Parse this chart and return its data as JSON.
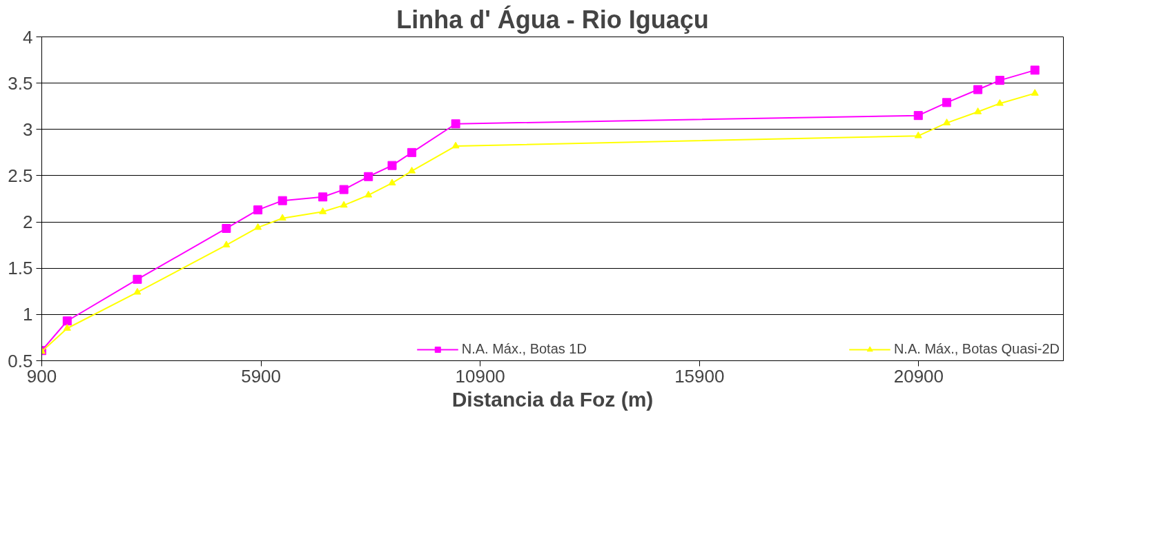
{
  "chart_data": {
    "type": "line",
    "title": "Linha d' Água - Rio Iguaçu",
    "xlabel": "Distancia da Foz (m)",
    "x": [
      900,
      1480,
      3080,
      5110,
      5830,
      6390,
      7310,
      7790,
      8350,
      8890,
      9340,
      10340,
      20890,
      21540,
      22250,
      22750,
      23550
    ],
    "series": [
      {
        "name": "N.A. Máx., Botas 1D",
        "color": "#ff00ff",
        "marker": "square",
        "values": [
          0.61,
          0.93,
          1.38,
          1.93,
          2.13,
          2.23,
          2.27,
          2.35,
          2.49,
          2.61,
          2.75,
          3.06,
          3.15,
          3.29,
          3.43,
          3.53,
          3.64
        ]
      },
      {
        "name": "N.A. Máx., Botas Quasi-2D",
        "color": "#ffff00",
        "marker": "triangle",
        "values": [
          0.6,
          0.85,
          1.24,
          1.75,
          1.94,
          2.04,
          2.11,
          2.18,
          2.29,
          2.42,
          2.55,
          2.82,
          2.93,
          3.07,
          3.19,
          3.28,
          3.39
        ]
      }
    ],
    "xlim": [
      900,
      24200
    ],
    "xticks": [
      900,
      5900,
      10900,
      15900,
      20900
    ],
    "ylim": [
      0.5,
      4
    ],
    "yticks": [
      0.5,
      1,
      1.5,
      2,
      2.5,
      3,
      3.5,
      4
    ],
    "grid": "y",
    "legend": "bottom",
    "line_style": "solid"
  }
}
